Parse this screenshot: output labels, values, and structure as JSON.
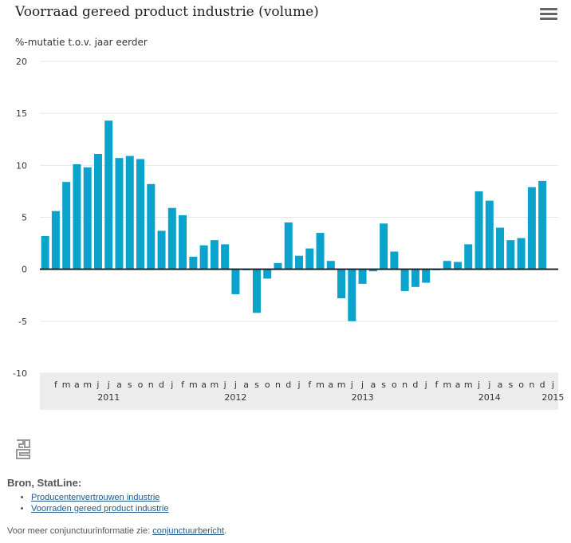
{
  "header": {
    "title": "Voorraad gereed product industrie (volume)",
    "menu_icon": "hamburger-menu-icon"
  },
  "chart_data": {
    "type": "bar",
    "title": "Voorraad gereed product industrie (volume)",
    "ylabel": "%-mutatie t.o.v. jaar eerder",
    "ylim": [
      -10,
      20
    ],
    "yticks": [
      -10,
      -5,
      0,
      5,
      10,
      15,
      20
    ],
    "grid": true,
    "legend": "none",
    "color": "#0aa3cc",
    "categories": [
      "2011-01",
      "2011-02",
      "2011-03",
      "2011-04",
      "2011-05",
      "2011-06",
      "2011-07",
      "2011-08",
      "2011-09",
      "2011-10",
      "2011-11",
      "2011-12",
      "2012-01",
      "2012-02",
      "2012-03",
      "2012-04",
      "2012-05",
      "2012-06",
      "2012-07",
      "2012-08",
      "2012-09",
      "2012-10",
      "2012-11",
      "2012-12",
      "2013-01",
      "2013-02",
      "2013-03",
      "2013-04",
      "2013-05",
      "2013-06",
      "2013-07",
      "2013-08",
      "2013-09",
      "2013-10",
      "2013-11",
      "2013-12",
      "2014-01",
      "2014-02",
      "2014-03",
      "2014-04",
      "2014-05",
      "2014-06",
      "2014-07",
      "2014-08",
      "2014-09",
      "2014-10",
      "2014-11",
      "2014-12",
      "2015-01"
    ],
    "values": [
      3.2,
      5.6,
      8.4,
      10.1,
      9.8,
      11.1,
      14.3,
      10.7,
      10.9,
      10.6,
      8.2,
      3.7,
      5.9,
      5.2,
      1.2,
      2.3,
      2.8,
      2.4,
      -2.4,
      -0.1,
      -4.2,
      -0.9,
      0.6,
      4.5,
      1.3,
      2.0,
      3.5,
      0.8,
      -2.8,
      -5.0,
      -1.4,
      -0.2,
      4.4,
      1.7,
      -2.1,
      -1.7,
      -1.3,
      -0.1,
      0.8,
      0.7,
      2.4,
      7.5,
      6.6,
      4.0,
      2.8,
      3.0,
      7.9,
      8.5,
      null
    ],
    "month_labels": [
      "f",
      "m",
      "a",
      "m",
      "j",
      "j",
      "a",
      "s",
      "o",
      "n",
      "d",
      "j",
      "f",
      "m",
      "a",
      "m",
      "j",
      "j",
      "a",
      "s",
      "o",
      "n",
      "d",
      "j",
      "f",
      "m",
      "a",
      "m",
      "j",
      "j",
      "a",
      "s",
      "o",
      "n",
      "d",
      "j",
      "f",
      "m",
      "a",
      "m",
      "j",
      "j",
      "a",
      "s",
      "o",
      "n",
      "d",
      "j"
    ],
    "year_labels": [
      {
        "label": "2011",
        "month_index": 6
      },
      {
        "label": "2012",
        "month_index": 18
      },
      {
        "label": "2013",
        "month_index": 30
      },
      {
        "label": "2014",
        "month_index": 42
      },
      {
        "label": "2015",
        "month_index": 48
      }
    ]
  },
  "source": {
    "logo_icon": "cbs-logo-icon",
    "title": "Bron, StatLine:",
    "links": [
      "Producentenvertrouwen industrie",
      "Voorraden gereed product industrie"
    ]
  },
  "footer": {
    "text": "Voor meer conjunctuurinformatie zie: ",
    "link": "conjunctuurbericht",
    "suffix": "."
  }
}
